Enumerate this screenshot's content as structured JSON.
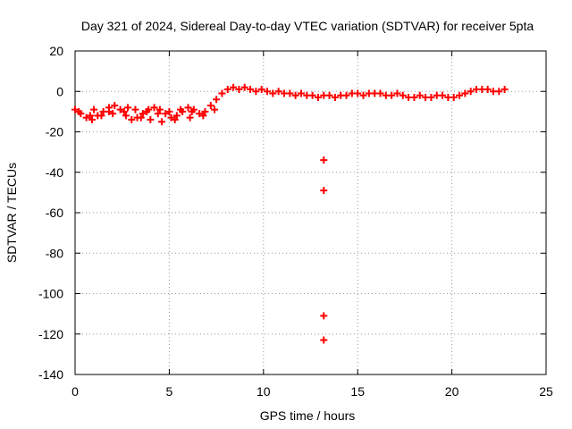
{
  "chart_data": {
    "type": "scatter",
    "title": "Day 321 of 2024, Sidereal Day-to-day VTEC variation (SDTVAR) for receiver 5pta",
    "xlabel": "GPS time / hours",
    "ylabel": "SDTVAR / TECUs",
    "xlim": [
      0,
      25
    ],
    "ylim": [
      -140,
      20
    ],
    "xticks": [
      0,
      5,
      10,
      15,
      20,
      25
    ],
    "yticks": [
      -140,
      -120,
      -100,
      -80,
      -60,
      -40,
      -20,
      0,
      20
    ],
    "grid": true,
    "series": [
      {
        "name": "SDTVAR",
        "color": "#ff0000",
        "points": [
          [
            0.0,
            -9
          ],
          [
            0.3,
            -11
          ],
          [
            0.6,
            -13
          ],
          [
            0.9,
            -14
          ],
          [
            1.2,
            -12
          ],
          [
            1.5,
            -10
          ],
          [
            1.8,
            -8
          ],
          [
            2.1,
            -7
          ],
          [
            2.4,
            -9
          ],
          [
            2.7,
            -12
          ],
          [
            3.0,
            -14
          ],
          [
            3.3,
            -13
          ],
          [
            3.6,
            -11
          ],
          [
            3.9,
            -9
          ],
          [
            4.2,
            -8
          ],
          [
            4.5,
            -9
          ],
          [
            4.8,
            -11
          ],
          [
            5.1,
            -13
          ],
          [
            5.4,
            -12
          ],
          [
            5.7,
            -10
          ],
          [
            6.0,
            -8
          ],
          [
            6.3,
            -9
          ],
          [
            6.6,
            -11
          ],
          [
            6.9,
            -10
          ],
          [
            7.2,
            -7
          ],
          [
            7.5,
            -4
          ],
          [
            7.8,
            -1
          ],
          [
            8.1,
            1
          ],
          [
            8.4,
            2
          ],
          [
            8.7,
            1
          ],
          [
            9.0,
            2
          ],
          [
            9.3,
            1
          ],
          [
            9.6,
            0
          ],
          [
            9.9,
            1
          ],
          [
            10.2,
            0
          ],
          [
            10.5,
            -1
          ],
          [
            10.8,
            0
          ],
          [
            11.1,
            -1
          ],
          [
            11.4,
            -1
          ],
          [
            11.7,
            -2
          ],
          [
            12.0,
            -1
          ],
          [
            12.3,
            -2
          ],
          [
            12.6,
            -2
          ],
          [
            12.9,
            -3
          ],
          [
            13.2,
            -2
          ],
          [
            13.5,
            -2
          ],
          [
            13.8,
            -3
          ],
          [
            14.1,
            -2
          ],
          [
            14.4,
            -2
          ],
          [
            14.7,
            -1
          ],
          [
            15.0,
            -1
          ],
          [
            15.3,
            -2
          ],
          [
            15.6,
            -1
          ],
          [
            15.9,
            -1
          ],
          [
            16.2,
            -1
          ],
          [
            16.5,
            -2
          ],
          [
            16.8,
            -2
          ],
          [
            17.1,
            -1
          ],
          [
            17.4,
            -2
          ],
          [
            17.7,
            -3
          ],
          [
            18.0,
            -3
          ],
          [
            18.3,
            -2
          ],
          [
            18.6,
            -3
          ],
          [
            18.9,
            -3
          ],
          [
            19.2,
            -2
          ],
          [
            19.5,
            -2
          ],
          [
            19.8,
            -3
          ],
          [
            20.1,
            -3
          ],
          [
            20.4,
            -2
          ],
          [
            20.7,
            -1
          ],
          [
            21.0,
            0
          ],
          [
            21.3,
            1
          ],
          [
            21.6,
            1
          ],
          [
            21.9,
            1
          ],
          [
            22.2,
            0
          ],
          [
            22.5,
            0
          ],
          [
            22.8,
            1
          ],
          [
            0.2,
            -10
          ],
          [
            0.8,
            -12
          ],
          [
            1.4,
            -12
          ],
          [
            2.0,
            -11
          ],
          [
            2.6,
            -10
          ],
          [
            3.2,
            -9
          ],
          [
            3.8,
            -10
          ],
          [
            4.4,
            -11
          ],
          [
            5.0,
            -10
          ],
          [
            5.6,
            -9
          ],
          [
            6.2,
            -10
          ],
          [
            6.8,
            -12
          ],
          [
            7.4,
            -9
          ],
          [
            1.0,
            -9
          ],
          [
            1.8,
            -10
          ],
          [
            2.8,
            -8
          ],
          [
            3.5,
            -13
          ],
          [
            4.0,
            -14
          ],
          [
            4.6,
            -15
          ],
          [
            5.3,
            -14
          ],
          [
            6.1,
            -13
          ],
          [
            13.2,
            -34
          ],
          [
            13.2,
            -49
          ],
          [
            13.2,
            -111
          ],
          [
            13.2,
            -123
          ]
        ]
      }
    ]
  }
}
